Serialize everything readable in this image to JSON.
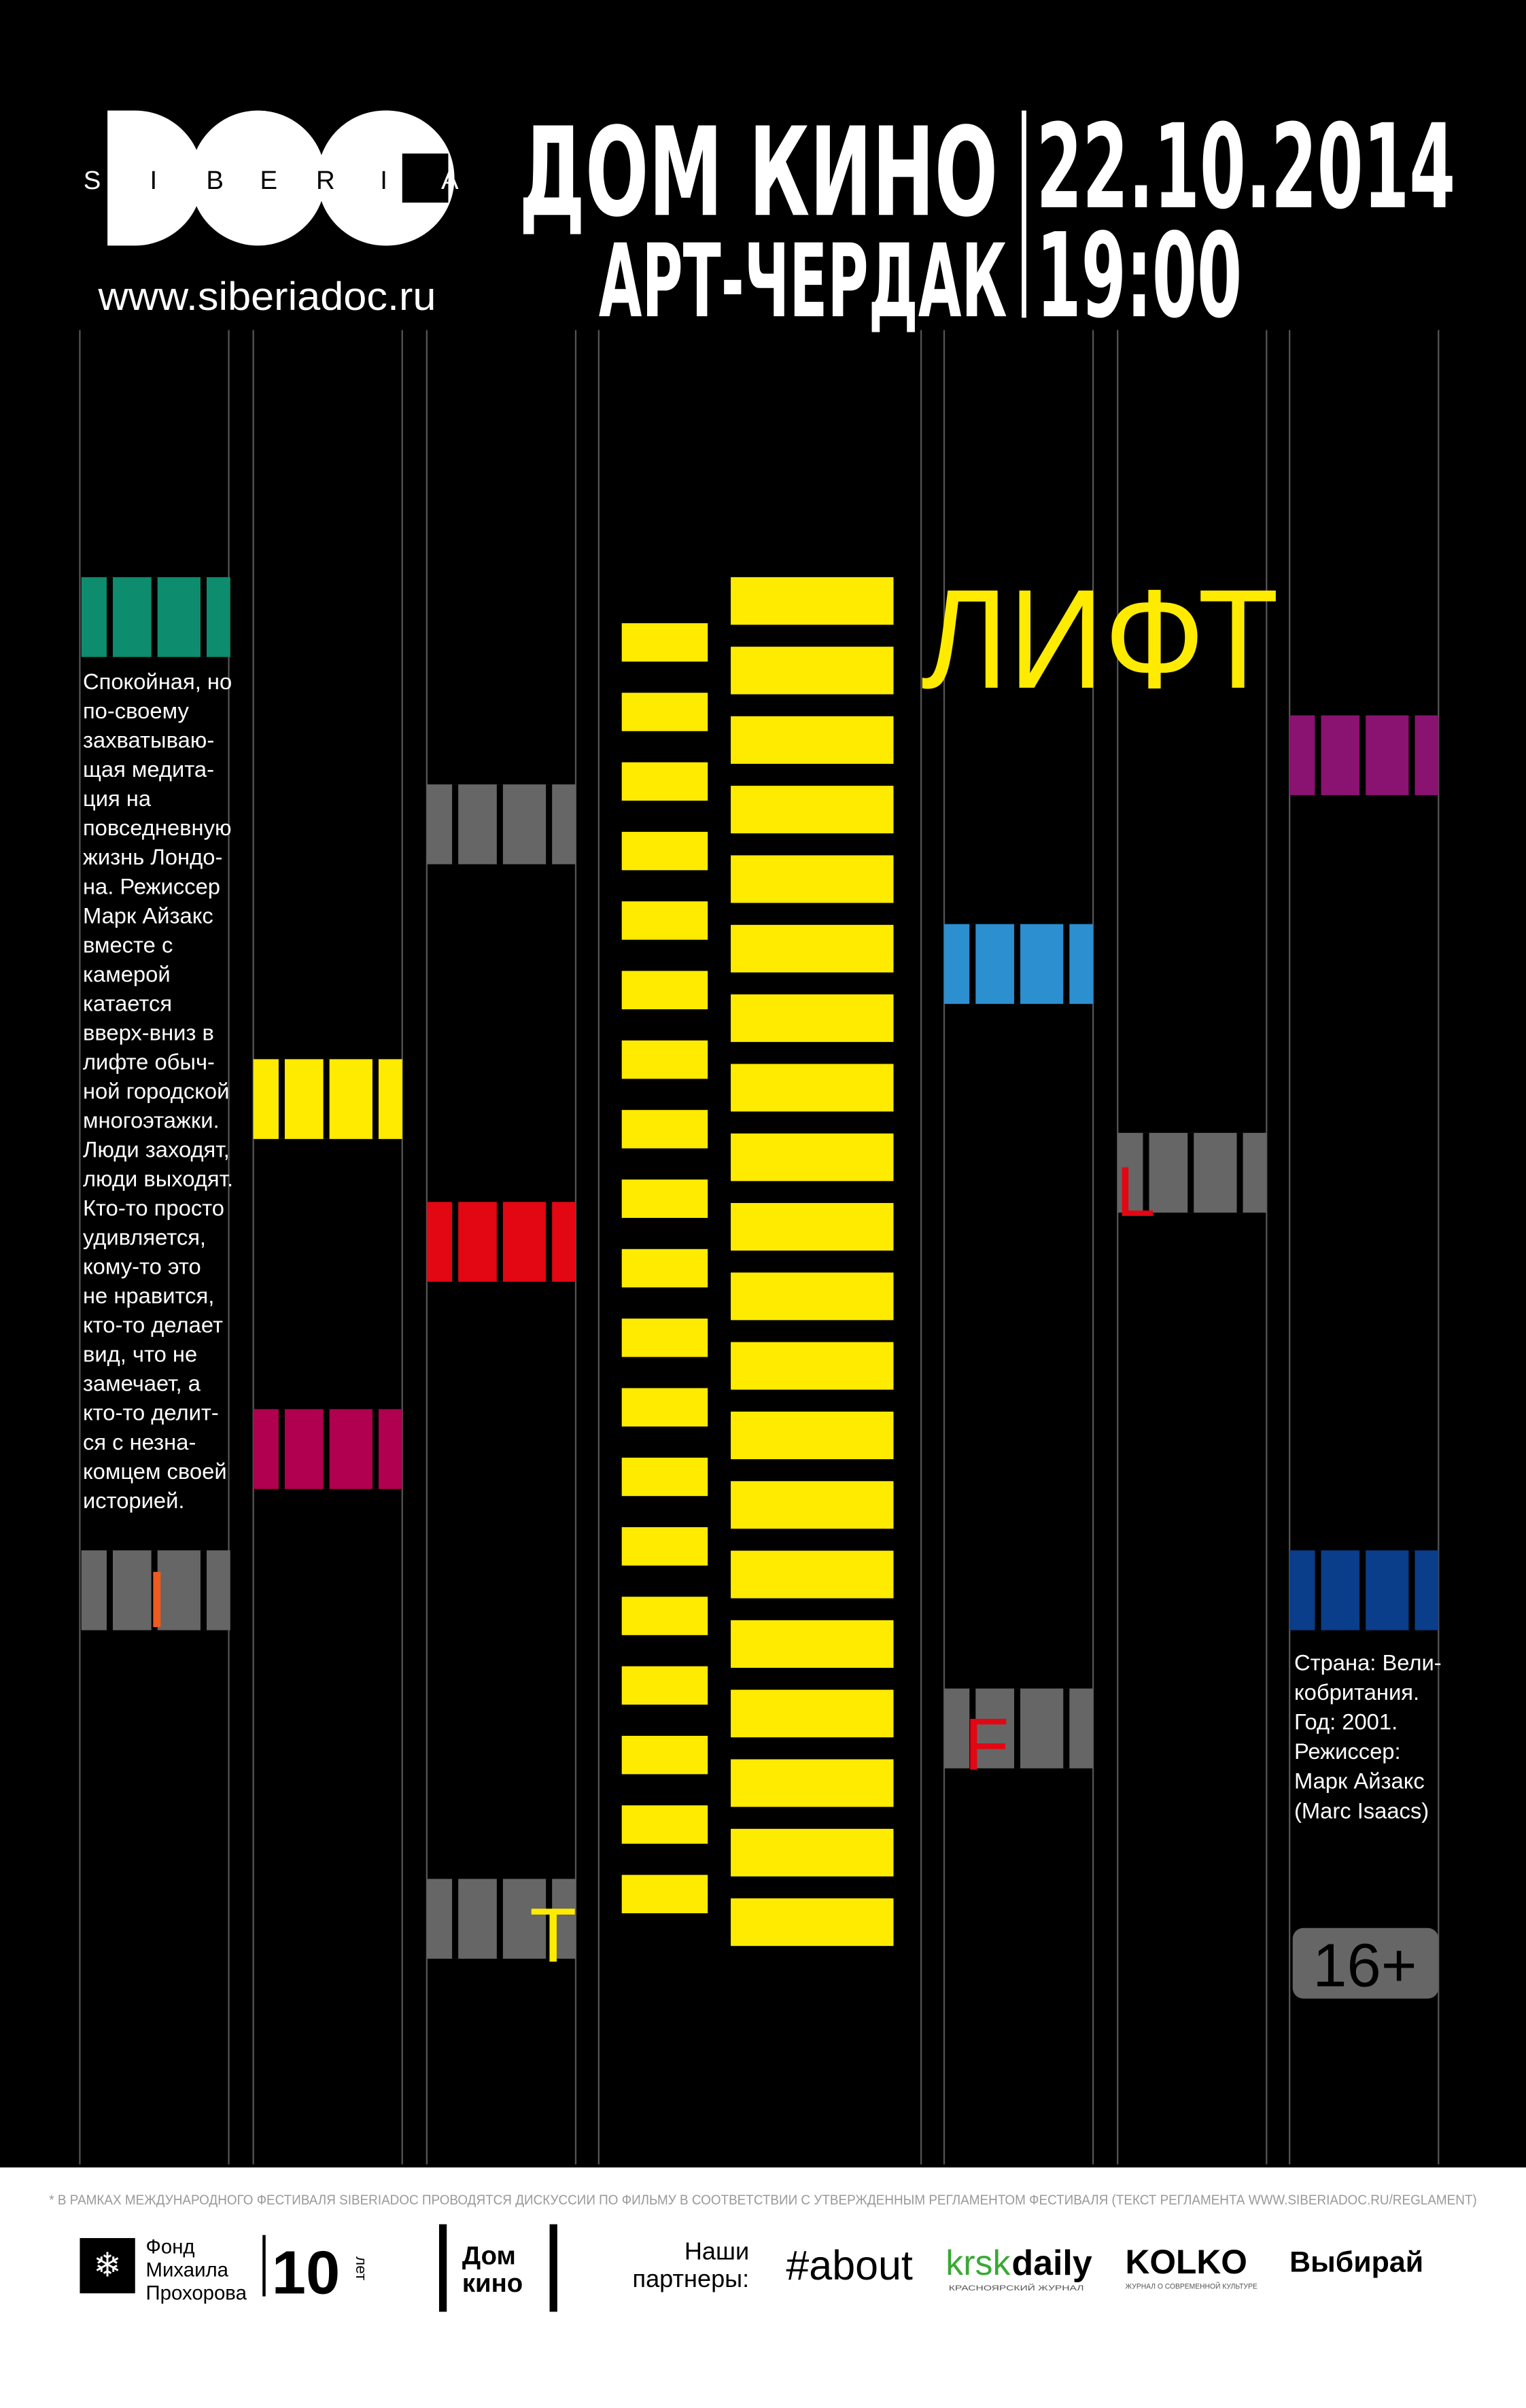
{
  "logo": {
    "letters": [
      "S",
      "I",
      "B",
      "E",
      "R",
      "I",
      "A"
    ],
    "url": "www.siberiadoc.ru"
  },
  "venue": {
    "line1": "ДОМ КИНО",
    "line2": "АРТ-ЧЕРДАК"
  },
  "datetime": {
    "date": "22.10.2014",
    "time": "19:00"
  },
  "film": {
    "title": "ЛИФТ",
    "letters": {
      "L": "L",
      "I": "I",
      "F": "F",
      "T": "T"
    },
    "description": [
      "Спокойная, но",
      "по-своему",
      "захватываю-",
      "щая медита-",
      "ция на",
      "повседневную",
      "жизнь Лондо-",
      "на. Режиссер",
      "Марк Айзакс",
      "вместе с",
      "камерой",
      "катается",
      "вверх-вниз в",
      "лифте обыч-",
      "ной городской",
      "многоэтажки.",
      "Люди заходят,",
      "люди выходят.",
      "Кто-то просто",
      "удивляется,",
      "кому-то это",
      "не нравится,",
      "кто-то делает",
      "вид, что не",
      "замечает, а",
      "кто-то делит-",
      "ся с незна-",
      "комцем своей",
      "историей."
    ],
    "credits": [
      "Страна: Вели-",
      "кобритания.",
      "Год: 2001.",
      "Режиссер:",
      "Марк Айзакс",
      "(Marc Isaacs)"
    ],
    "age": "16+"
  },
  "footer": {
    "note": "* В РАМКАХ МЕЖДУНАРОДНОГО ФЕСТИВАЛЯ SIBERIADOC ПРОВОДЯТСЯ ДИСКУССИИ ПО ФИЛЬМУ В СООТВЕТСТВИИ С УТВЕРЖДЕННЫМ РЕГЛАМЕНТОМ ФЕСТИВАЛЯ (ТЕКСТ РЕГЛАМЕНТА WWW.SIBERIADOC.RU/REGLAMENT)",
    "fund": [
      "Фонд",
      "Михаила",
      "Прохорова"
    ],
    "years": "10",
    "years_word": "лет",
    "domkino": [
      "Дом",
      "кино"
    ],
    "partners_label": [
      "Наши",
      "партнеры:"
    ],
    "partners": [
      "#about",
      "krsk",
      "daily",
      "КРАСНОЯРСКИЙ ЖУРНАЛ",
      "KOLKO",
      "ЖУРНАЛ О СОВРЕМЕННОЙ КУЛЬТУРЕ",
      "Выбирай"
    ]
  }
}
